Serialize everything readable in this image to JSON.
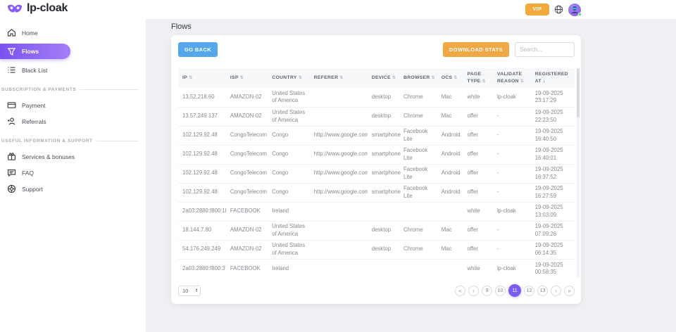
{
  "header": {
    "logo": "lp-cloak",
    "vip_label": "VIP"
  },
  "sidebar": {
    "items": [
      {
        "label": "Home"
      },
      {
        "label": "Flows"
      },
      {
        "label": "Black List"
      },
      {
        "label": "Payment"
      },
      {
        "label": "Referrals"
      },
      {
        "label": "Services & bonuses"
      },
      {
        "label": "FAQ"
      },
      {
        "label": "Support"
      }
    ],
    "section_labels": [
      "SUBSCRIPTION & PAYMENTS",
      "USEFUL INFORMATION & SUPPORT"
    ],
    "active_item": "Flows"
  },
  "page": {
    "title": "Flows"
  },
  "toolbar": {
    "go_back_label": "GO BACK",
    "download_stats_label": "DOWNLOAD STATS",
    "search_placeholder": "Search..."
  },
  "table": {
    "columns": [
      {
        "label": "IP"
      },
      {
        "label": "ISP"
      },
      {
        "label": "COUNTRY"
      },
      {
        "label": "REFERER"
      },
      {
        "label": "DEVICE"
      },
      {
        "label": "BROWSER"
      },
      {
        "label": "OCS"
      },
      {
        "label": "PAGE TYPE"
      },
      {
        "label": "VALIDATE REASON"
      },
      {
        "label": "REGISTERED AT",
        "sorted": "desc"
      }
    ],
    "rows": [
      {
        "ip": "13.52.218.60",
        "isp": "AMAZON-02",
        "country": "United States of America",
        "referer": "",
        "device": "desktop",
        "browser": "Chrome",
        "ocs": "Mac",
        "page_type": "white",
        "validate_reason": "lp-cloak",
        "registered_date": "19-09-2025",
        "registered_time": "23:17:29"
      },
      {
        "ip": "13.57.249.137",
        "isp": "AMAZON-02",
        "country": "United States of America",
        "referer": "",
        "device": "desktop",
        "browser": "Chrome",
        "ocs": "Mac",
        "page_type": "offer",
        "validate_reason": "-",
        "registered_date": "19-09-2025",
        "registered_time": "22:23:50"
      },
      {
        "ip": "102.129.92.48",
        "isp": "CongoTelecom",
        "country": "Congo",
        "referer": "http://www.google.com/",
        "device": "smartphone",
        "browser": "Facebook Lite",
        "ocs": "Android",
        "page_type": "offer",
        "validate_reason": "-",
        "registered_date": "19-09-2025",
        "registered_time": "16:40:50"
      },
      {
        "ip": "102.129.92.48",
        "isp": "CongoTelecom",
        "country": "Congo",
        "referer": "http://www.google.com/",
        "device": "smartphone",
        "browser": "Facebook Lite",
        "ocs": "Android",
        "page_type": "offer",
        "validate_reason": "-",
        "registered_date": "19-09-2025",
        "registered_time": "16:40:01"
      },
      {
        "ip": "102.129.92.48",
        "isp": "CongoTelecom",
        "country": "Congo",
        "referer": "http://www.google.com/",
        "device": "smartphone",
        "browser": "Facebook Lite",
        "ocs": "Android",
        "page_type": "offer",
        "validate_reason": "-",
        "registered_date": "19-09-2025",
        "registered_time": "16:37:52"
      },
      {
        "ip": "102.129.92.48",
        "isp": "CongoTelecom",
        "country": "Congo",
        "referer": "http://www.google.com/",
        "device": "smartphone",
        "browser": "Facebook Lite",
        "ocs": "Android",
        "page_type": "offer",
        "validate_reason": "-",
        "registered_date": "19-09-2025",
        "registered_time": "16:27:59"
      },
      {
        "ip": "2a03:2880:f800:1b::",
        "isp": "FACEBOOK",
        "country": "Ireland",
        "referer": "",
        "device": "",
        "browser": "",
        "ocs": "",
        "page_type": "white",
        "validate_reason": "lp-cloak",
        "registered_date": "19-09-2025",
        "registered_time": "13:03:09"
      },
      {
        "ip": "18.144.7.80",
        "isp": "AMAZON-02",
        "country": "United States of America",
        "referer": "",
        "device": "desktop",
        "browser": "Chrome",
        "ocs": "Mac",
        "page_type": "offer",
        "validate_reason": "-",
        "registered_date": "19-09-2025",
        "registered_time": "07:09:26"
      },
      {
        "ip": "54.176.249.249",
        "isp": "AMAZON-02",
        "country": "United States of America",
        "referer": "",
        "device": "desktop",
        "browser": "Chrome",
        "ocs": "Mac",
        "page_type": "offer",
        "validate_reason": "-",
        "registered_date": "19-09-2025",
        "registered_time": "06:14:35"
      },
      {
        "ip": "2a03:2880:f800:37::",
        "isp": "FACEBOOK",
        "country": "Ireland",
        "referer": "",
        "device": "",
        "browser": "",
        "ocs": "",
        "page_type": "white",
        "validate_reason": "lp-cloak",
        "registered_date": "19-09-2025",
        "registered_time": "00:58:35"
      }
    ]
  },
  "pagination": {
    "page_size": "10",
    "pages": [
      "9",
      "10",
      "11",
      "12",
      "13"
    ],
    "active_page": "11",
    "nav": {
      "first": "«",
      "prev": "‹",
      "next": "›",
      "last": "»"
    }
  },
  "colors": {
    "accent_purple": "#7c5cf0",
    "vip_orange": "#f3aa3d",
    "download_orange": "#f0a844",
    "go_back_blue": "#55a7eb",
    "online_green": "#3ecf6e"
  }
}
